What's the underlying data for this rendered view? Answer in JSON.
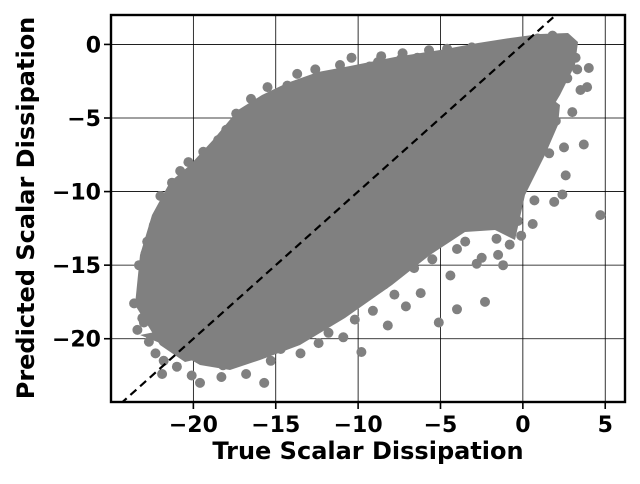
{
  "chart_data": {
    "type": "scatter",
    "title": "",
    "xlabel": "True Scalar Dissipation",
    "ylabel": "Predicted Scalar Dissipation",
    "xlim": [
      -25.0,
      6.2
    ],
    "ylim": [
      -24.3,
      2.0
    ],
    "xticks": [
      -20,
      -15,
      -10,
      -5,
      0,
      5
    ],
    "yticks": [
      0,
      -5,
      -10,
      -15,
      -20
    ],
    "xtick_labels": [
      "−20",
      "−15",
      "−10",
      "−5",
      "0",
      "5"
    ],
    "ytick_labels": [
      "0",
      "−5",
      "−10",
      "−15",
      "−20"
    ],
    "grid": true,
    "marker_color": "#808080",
    "reference_line": {
      "style": "dashed",
      "color": "#000000",
      "from": [
        -25,
        -25
      ],
      "to": [
        2,
        2
      ]
    },
    "points": [
      [
        -23.6,
        -17.6
      ],
      [
        -23.4,
        -19.4
      ],
      [
        -23.3,
        -15.0
      ],
      [
        -23.1,
        -18.6
      ],
      [
        -22.9,
        -14.2
      ],
      [
        -22.8,
        -13.4
      ],
      [
        -22.7,
        -20.2
      ],
      [
        -22.6,
        -16.1
      ],
      [
        -22.4,
        -12.3
      ],
      [
        -22.3,
        -21.0
      ],
      [
        -22.1,
        -18.0
      ],
      [
        -22.0,
        -10.3
      ],
      [
        -21.9,
        -22.4
      ],
      [
        -21.7,
        -11.6
      ],
      [
        -21.5,
        -19.4
      ],
      [
        -21.3,
        -9.4
      ],
      [
        -21.2,
        -15.4
      ],
      [
        -21.0,
        -21.9
      ],
      [
        -20.8,
        -8.6
      ],
      [
        -20.6,
        -20.9
      ],
      [
        -20.5,
        -13.0
      ],
      [
        -20.3,
        -8.0
      ],
      [
        -20.1,
        -22.5
      ],
      [
        -20.0,
        -17.2
      ],
      [
        -19.8,
        -10.0
      ],
      [
        -19.6,
        -23.0
      ],
      [
        -19.4,
        -7.3
      ],
      [
        -19.3,
        -14.7
      ],
      [
        -19.1,
        -21.3
      ],
      [
        -19.0,
        -8.4
      ],
      [
        -18.8,
        -20.0
      ],
      [
        -18.6,
        -11.2
      ],
      [
        -18.5,
        -6.5
      ],
      [
        -18.3,
        -22.6
      ],
      [
        -18.1,
        -16.9
      ],
      [
        -18.0,
        -5.8
      ],
      [
        -17.8,
        -21.4
      ],
      [
        -17.6,
        -9.2
      ],
      [
        -17.4,
        -4.7
      ],
      [
        -17.2,
        -19.0
      ],
      [
        -17.0,
        -6.1
      ],
      [
        -16.8,
        -22.4
      ],
      [
        -16.6,
        -12.8
      ],
      [
        -16.5,
        -3.7
      ],
      [
        -16.3,
        -20.4
      ],
      [
        -16.1,
        -4.0
      ],
      [
        -15.9,
        -8.0
      ],
      [
        -15.7,
        -23.0
      ],
      [
        -15.5,
        -2.9
      ],
      [
        -15.3,
        -21.5
      ],
      [
        -15.1,
        -14.1
      ],
      [
        -14.9,
        -3.5
      ],
      [
        -14.7,
        -20.7
      ],
      [
        -14.5,
        -5.6
      ],
      [
        -14.3,
        -2.8
      ],
      [
        -14.1,
        -19.6
      ],
      [
        -13.9,
        -10.5
      ],
      [
        -13.7,
        -2.0
      ],
      [
        -13.5,
        -21.0
      ],
      [
        -13.3,
        -3.4
      ],
      [
        -13.1,
        -18.4
      ],
      [
        -12.9,
        -7.2
      ],
      [
        -12.6,
        -1.7
      ],
      [
        -12.4,
        -20.3
      ],
      [
        -12.2,
        -13.6
      ],
      [
        -12.0,
        -2.2
      ],
      [
        -11.8,
        -19.6
      ],
      [
        -11.5,
        -4.8
      ],
      [
        -11.3,
        -17.2
      ],
      [
        -11.1,
        -1.4
      ],
      [
        -10.9,
        -19.9
      ],
      [
        -10.6,
        -9.1
      ],
      [
        -10.4,
        -0.9
      ],
      [
        -10.2,
        -18.7
      ],
      [
        -10.0,
        -2.8
      ],
      [
        -9.8,
        -20.9
      ],
      [
        -9.5,
        -15.8
      ],
      [
        -9.3,
        -1.5
      ],
      [
        -9.1,
        -18.1
      ],
      [
        -8.9,
        -6.4
      ],
      [
        -8.6,
        -0.8
      ],
      [
        -8.4,
        -16.3
      ],
      [
        -8.2,
        -19.1
      ],
      [
        -8.0,
        -2.0
      ],
      [
        -7.8,
        -17.0
      ],
      [
        -7.6,
        -11.3
      ],
      [
        -7.3,
        -0.6
      ],
      [
        -7.1,
        -17.8
      ],
      [
        -6.8,
        -4.2
      ],
      [
        -6.6,
        -15.2
      ],
      [
        -6.4,
        -0.9
      ],
      [
        -6.2,
        -16.9
      ],
      [
        -6.0,
        -8.0
      ],
      [
        -5.7,
        -0.4
      ],
      [
        -5.5,
        -14.6
      ],
      [
        -5.3,
        -2.6
      ],
      [
        -5.1,
        -18.9
      ],
      [
        -4.8,
        -12.4
      ],
      [
        -4.6,
        -0.3
      ],
      [
        -4.4,
        -15.7
      ],
      [
        -4.2,
        -5.1
      ],
      [
        -4.0,
        -18.0
      ],
      [
        -3.7,
        -0.6
      ],
      [
        -3.5,
        -13.4
      ],
      [
        -3.3,
        -9.0
      ],
      [
        -3.1,
        -0.2
      ],
      [
        -2.8,
        -14.9
      ],
      [
        -2.6,
        -3.4
      ],
      [
        -2.3,
        -17.5
      ],
      [
        -2.1,
        -11.3
      ],
      [
        -1.9,
        -0.5
      ],
      [
        -1.6,
        -13.2
      ],
      [
        -1.4,
        -6.0
      ],
      [
        -1.2,
        -15.0
      ],
      [
        -1.0,
        -0.1
      ],
      [
        -0.7,
        -10.7
      ],
      [
        -0.5,
        -2.6
      ],
      [
        -0.3,
        -12.0
      ],
      [
        0.0,
        0.2
      ],
      [
        0.2,
        -8.2
      ],
      [
        0.4,
        -4.3
      ],
      [
        0.7,
        -10.6
      ],
      [
        0.9,
        0.4
      ],
      [
        1.1,
        -6.9
      ],
      [
        1.3,
        -2.0
      ],
      [
        1.6,
        -7.4
      ],
      [
        1.8,
        0.6
      ],
      [
        2.0,
        -5.2
      ],
      [
        2.3,
        -1.1
      ],
      [
        2.5,
        -7.0
      ],
      [
        2.7,
        -2.3
      ],
      [
        3.0,
        -4.6
      ],
      [
        3.2,
        -0.9
      ],
      [
        3.5,
        -3.1
      ],
      [
        3.7,
        -6.8
      ],
      [
        4.0,
        -1.6
      ],
      [
        4.7,
        -11.6
      ],
      [
        2.6,
        -8.9
      ],
      [
        2.4,
        -10.2
      ],
      [
        1.9,
        -10.7
      ],
      [
        0.6,
        -12.2
      ],
      [
        -0.1,
        -13.0
      ],
      [
        -0.8,
        -13.6
      ],
      [
        -1.5,
        -14.3
      ],
      [
        -2.5,
        -14.5
      ],
      [
        -4.0,
        -13.9
      ],
      [
        -6.3,
        -13.2
      ],
      [
        -7.7,
        -12.6
      ],
      [
        -9.7,
        -16.0
      ],
      [
        -11.0,
        -17.4
      ],
      [
        -12.4,
        -18.1
      ],
      [
        -13.8,
        -19.0
      ],
      [
        -15.0,
        -20.6
      ],
      [
        -16.9,
        -21.2
      ],
      [
        -18.2,
        -21.8
      ],
      [
        -20.3,
        -19.2
      ],
      [
        -21.6,
        -17.2
      ],
      [
        -22.8,
        -16.8
      ],
      [
        -23.0,
        -18.9
      ],
      [
        -22.3,
        -13.9
      ],
      [
        -21.4,
        -11.1
      ],
      [
        -20.4,
        -9.4
      ],
      [
        -19.1,
        -7.9
      ],
      [
        -17.7,
        -6.6
      ],
      [
        -16.2,
        -5.2
      ],
      [
        -14.8,
        -4.4
      ],
      [
        -13.2,
        -4.1
      ],
      [
        -11.7,
        -2.9
      ],
      [
        -10.3,
        -1.8
      ],
      [
        -8.8,
        -1.2
      ],
      [
        -7.4,
        -1.0
      ],
      [
        -5.9,
        -0.9
      ],
      [
        -4.3,
        -1.0
      ],
      [
        -2.9,
        -0.9
      ],
      [
        -1.3,
        -1.4
      ],
      [
        0.3,
        -1.1
      ],
      [
        1.5,
        -0.5
      ],
      [
        2.8,
        -0.1
      ],
      [
        3.3,
        -1.7
      ],
      [
        3.9,
        -2.9
      ],
      [
        -20.9,
        -14.3
      ],
      [
        -18.7,
        -13.1
      ],
      [
        -16.4,
        -11.5
      ],
      [
        -14.1,
        -9.3
      ],
      [
        -11.9,
        -7.6
      ],
      [
        -9.6,
        -5.8
      ],
      [
        -7.2,
        -3.6
      ],
      [
        -5.0,
        -2.3
      ],
      [
        -2.6,
        -1.5
      ],
      [
        -17.4,
        -15.8
      ],
      [
        -15.2,
        -17.1
      ],
      [
        -12.8,
        -14.8
      ],
      [
        -10.6,
        -12.5
      ],
      [
        -8.3,
        -10.1
      ],
      [
        -6.1,
        -8.2
      ],
      [
        -3.8,
        -6.3
      ],
      [
        -1.6,
        -4.1
      ],
      [
        0.8,
        -2.4
      ],
      [
        -19.3,
        -17.4
      ],
      [
        -21.8,
        -21.5
      ]
    ]
  }
}
